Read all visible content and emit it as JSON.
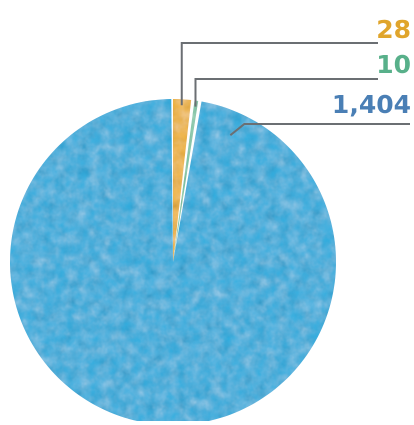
{
  "chart_data": {
    "type": "pie",
    "title": "",
    "slices": [
      {
        "label": "28",
        "value": 28,
        "color": "#f2b53a"
      },
      {
        "label": "10",
        "value": 10,
        "color": "#7cc7a4"
      },
      {
        "label": "1,404",
        "value": 1404,
        "color": "#2faee0"
      }
    ],
    "label_colors": [
      "#e0a52c",
      "#58b08a",
      "#4a7fb5"
    ],
    "leader_color": "#6b6f73",
    "texture": "watercolor-noise"
  }
}
